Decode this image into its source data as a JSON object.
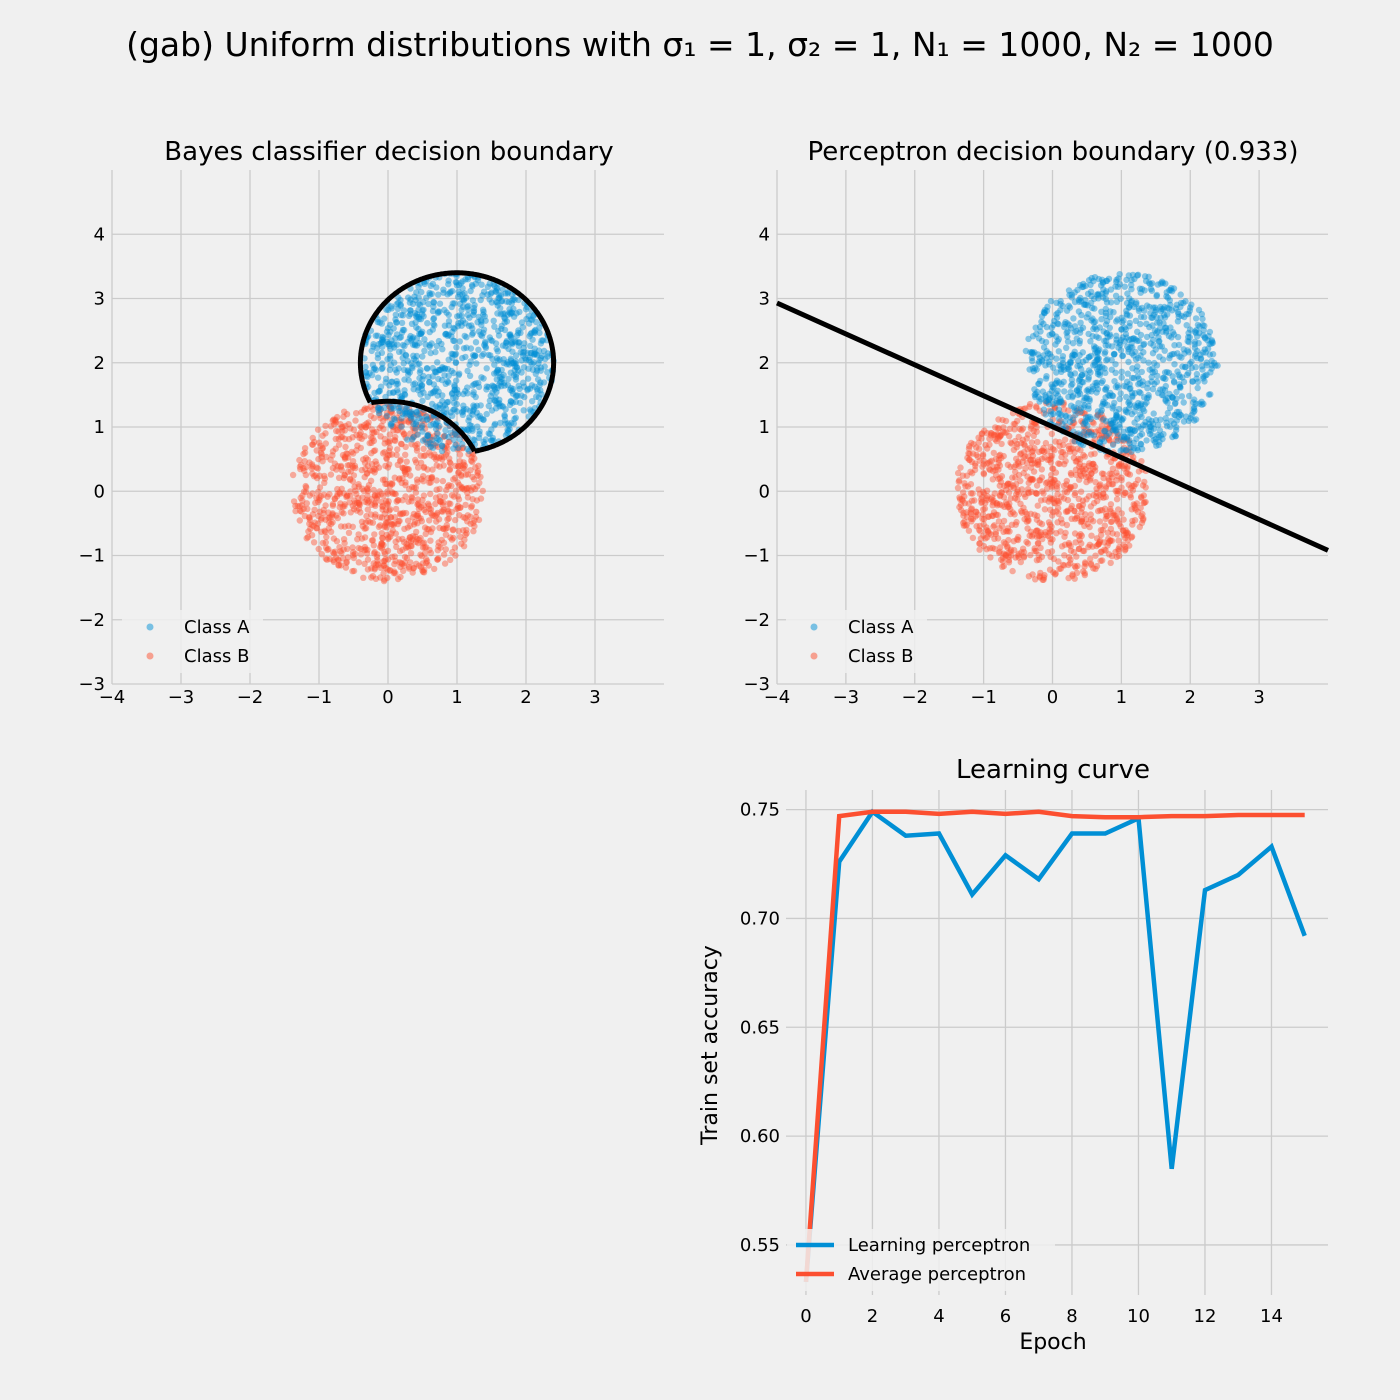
{
  "figure": {
    "title": "(gab) Uniform distributions with σ₁ = 1, σ₂ = 1, N₁ = 1000, N₂ = 1000",
    "background": "#f0f0f0",
    "grid_color": "#cbcbcb"
  },
  "colors": {
    "class_a": "#008fd5",
    "class_b": "#fc4f30",
    "boundary": "#000000"
  },
  "chart_data": [
    {
      "type": "scatter",
      "title": "Bayes classifier decision boundary",
      "xlim": [
        -4,
        4
      ],
      "ylim": [
        -3,
        5
      ],
      "xticks": [
        -4,
        -3,
        -2,
        -1,
        0,
        1,
        2,
        3
      ],
      "yticks": [
        -3,
        -2,
        -1,
        0,
        1,
        2,
        3,
        4
      ],
      "xtick_labels": [
        "−4",
        "−3",
        "−2",
        "−1",
        "0",
        "1",
        "2",
        "3"
      ],
      "ytick_labels": [
        "−3",
        "−2",
        "−1",
        "0",
        "1",
        "2",
        "3",
        "4"
      ],
      "grid": true,
      "legend": {
        "placement": "lower-left",
        "entries": [
          "Class A",
          "Class B"
        ]
      },
      "series": [
        {
          "name": "Class A",
          "distribution": "uniform-disk",
          "center": [
            1,
            2
          ],
          "radius": 1.4,
          "n": 1000
        },
        {
          "name": "Class B",
          "distribution": "uniform-disk",
          "center": [
            0,
            0
          ],
          "radius": 1.4,
          "n": 1000
        }
      ],
      "boundary": {
        "kind": "bayes-disk-arcs",
        "center_a": [
          1,
          2
        ],
        "center_b": [
          0,
          0
        ],
        "radius": 1.4
      }
    },
    {
      "type": "scatter",
      "title": "Perceptron decision boundary (0.933)",
      "xlim": [
        -4,
        4
      ],
      "ylim": [
        -3,
        5
      ],
      "xticks": [
        -4,
        -3,
        -2,
        -1,
        0,
        1,
        2,
        3
      ],
      "yticks": [
        -3,
        -2,
        -1,
        0,
        1,
        2,
        3,
        4
      ],
      "xtick_labels": [
        "−4",
        "−3",
        "−2",
        "−1",
        "0",
        "1",
        "2",
        "3"
      ],
      "ytick_labels": [
        "−3",
        "−2",
        "−1",
        "0",
        "1",
        "2",
        "3",
        "4"
      ],
      "grid": true,
      "legend": {
        "placement": "lower-left",
        "entries": [
          "Class A",
          "Class B"
        ]
      },
      "series": [
        {
          "name": "Class A",
          "distribution": "uniform-disk",
          "center": [
            1,
            2
          ],
          "radius": 1.4,
          "n": 1000
        },
        {
          "name": "Class B",
          "distribution": "uniform-disk",
          "center": [
            0,
            0
          ],
          "radius": 1.4,
          "n": 1000
        }
      ],
      "boundary": {
        "kind": "line",
        "points": [
          [
            -4,
            2.93
          ],
          [
            4,
            -0.92
          ]
        ]
      }
    },
    {
      "type": "line",
      "title": "Learning curve",
      "xlabel": "Epoch",
      "ylabel": "Train set accuracy",
      "xlim": [
        -0.6,
        15.7
      ],
      "ylim": [
        0.527,
        0.759
      ],
      "xticks": [
        0,
        2,
        4,
        6,
        8,
        10,
        12,
        14
      ],
      "yticks": [
        0.55,
        0.6,
        0.65,
        0.7,
        0.75
      ],
      "xtick_labels": [
        "0",
        "2",
        "4",
        "6",
        "8",
        "10",
        "12",
        "14"
      ],
      "ytick_labels": [
        "0.55",
        "0.60",
        "0.65",
        "0.70",
        "0.75"
      ],
      "grid": true,
      "legend": {
        "placement": "lower-left"
      },
      "x": [
        0,
        1,
        2,
        3,
        4,
        5,
        6,
        7,
        8,
        9,
        10,
        11,
        12,
        13,
        14,
        15
      ],
      "series": [
        {
          "name": "Learning perceptron",
          "values": [
            0.533,
            0.726,
            0.749,
            0.738,
            0.739,
            0.711,
            0.729,
            0.718,
            0.739,
            0.739,
            0.746,
            0.585,
            0.713,
            0.72,
            0.733,
            0.692
          ]
        },
        {
          "name": "Average perceptron",
          "values": [
            0.533,
            0.747,
            0.749,
            0.749,
            0.748,
            0.749,
            0.748,
            0.749,
            0.747,
            0.7465,
            0.7465,
            0.747,
            0.747,
            0.7475,
            0.7475,
            0.7475
          ]
        }
      ]
    }
  ]
}
